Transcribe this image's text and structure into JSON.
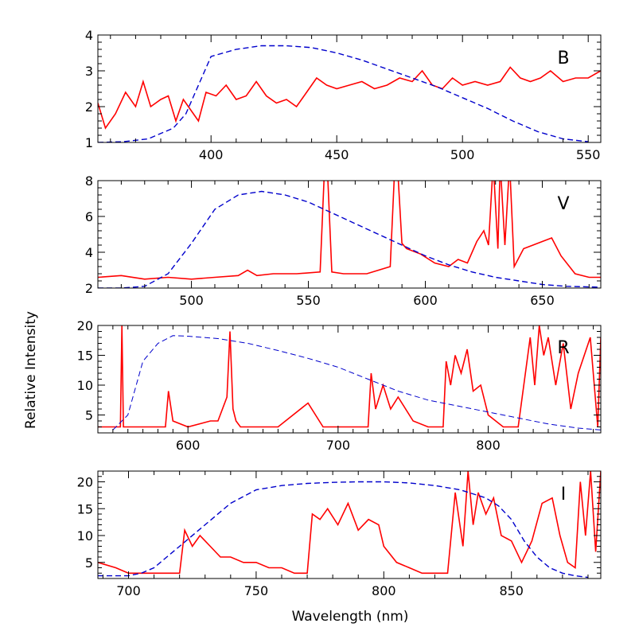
{
  "chart_data": {
    "type": "line",
    "shared_xlabel": "Wavelength (nm)",
    "shared_ylabel": "Relative Intensity",
    "panels": [
      {
        "band_label": "B",
        "xlim": [
          355,
          555
        ],
        "ylim": [
          1,
          4
        ],
        "xticks": [
          400,
          450,
          500,
          550
        ],
        "yticks": [
          1,
          2,
          3,
          4
        ],
        "series": [
          {
            "style": "solid",
            "color": "#ff0000",
            "x": [
              355,
              358,
              362,
              366,
              370,
              373,
              376,
              380,
              383,
              386,
              389,
              392,
              395,
              398,
              402,
              406,
              410,
              414,
              418,
              422,
              426,
              430,
              434,
              438,
              442,
              446,
              450,
              455,
              460,
              465,
              470,
              475,
              480,
              484,
              488,
              492,
              496,
              500,
              505,
              510,
              515,
              519,
              523,
              527,
              531,
              535,
              540,
              545,
              550,
              555
            ],
            "y": [
              2.1,
              1.4,
              1.8,
              2.4,
              2.0,
              2.7,
              2.0,
              2.2,
              2.3,
              1.6,
              2.2,
              1.9,
              1.6,
              2.4,
              2.3,
              2.6,
              2.2,
              2.3,
              2.7,
              2.3,
              2.1,
              2.2,
              2.0,
              2.4,
              2.8,
              2.6,
              2.5,
              2.6,
              2.7,
              2.5,
              2.6,
              2.8,
              2.7,
              3.0,
              2.6,
              2.5,
              2.8,
              2.6,
              2.7,
              2.6,
              2.7,
              3.1,
              2.8,
              2.7,
              2.8,
              3.0,
              2.7,
              2.8,
              2.8,
              3.0
            ]
          },
          {
            "style": "dashed",
            "color": "#0000cc",
            "x": [
              355,
              365,
              375,
              385,
              390,
              395,
              400,
              410,
              420,
              430,
              440,
              450,
              460,
              470,
              480,
              490,
              500,
              510,
              520,
              530,
              540,
              550
            ],
            "y": [
              1.0,
              1.02,
              1.1,
              1.4,
              1.8,
              2.6,
              3.4,
              3.6,
              3.7,
              3.7,
              3.65,
              3.5,
              3.3,
              3.05,
              2.8,
              2.55,
              2.25,
              1.95,
              1.6,
              1.3,
              1.1,
              1.02
            ]
          }
        ]
      },
      {
        "band_label": "V",
        "xlim": [
          460,
          675
        ],
        "ylim": [
          2,
          8
        ],
        "xticks": [
          500,
          550,
          600,
          650
        ],
        "yticks": [
          2,
          4,
          6,
          8
        ],
        "series": [
          {
            "style": "solid",
            "color": "#ff0000",
            "x": [
              460,
              470,
              480,
              490,
              500,
              510,
              520,
              524,
              528,
              535,
              545,
              555,
              557,
              558,
              560,
              565,
              575,
              585,
              587,
              588,
              590,
              592,
              598,
              604,
              610,
              614,
              618,
              622,
              625,
              627,
              629,
              631,
              632,
              634,
              636,
              638,
              642,
              646,
              650,
              654,
              658,
              664,
              670,
              675
            ],
            "y": [
              2.6,
              2.7,
              2.5,
              2.6,
              2.5,
              2.6,
              2.7,
              3.0,
              2.7,
              2.8,
              2.8,
              2.9,
              9.0,
              9.0,
              2.9,
              2.8,
              2.8,
              3.2,
              9.0,
              9.0,
              4.5,
              4.2,
              3.9,
              3.4,
              3.2,
              3.6,
              3.4,
              4.6,
              5.2,
              4.4,
              9.0,
              4.2,
              9.0,
              4.4,
              9.0,
              3.2,
              4.2,
              4.4,
              4.6,
              4.8,
              3.8,
              2.8,
              2.6,
              2.6
            ]
          },
          {
            "style": "dashed",
            "color": "#0000cc",
            "x": [
              460,
              470,
              480,
              490,
              500,
              510,
              520,
              530,
              540,
              550,
              560,
              570,
              580,
              590,
              600,
              610,
              620,
              630,
              640,
              650,
              660,
              675
            ],
            "y": [
              2.0,
              2.0,
              2.1,
              2.8,
              4.5,
              6.4,
              7.2,
              7.4,
              7.2,
              6.8,
              6.2,
              5.6,
              5.0,
              4.4,
              3.8,
              3.3,
              2.9,
              2.6,
              2.4,
              2.2,
              2.1,
              2.05
            ]
          }
        ]
      },
      {
        "band_label": "R",
        "xlim": [
          540,
          875
        ],
        "ylim": [
          2,
          20
        ],
        "xticks": [
          600,
          700,
          800
        ],
        "yticks": [
          5,
          10,
          15,
          20
        ],
        "series": [
          {
            "style": "solid",
            "color": "#ff0000",
            "x": [
              540,
              550,
              555,
              556,
              557,
              560,
              570,
              580,
              585,
              587,
              590,
              600,
              615,
              620,
              626,
              628,
              630,
              632,
              635,
              640,
              660,
              680,
              690,
              700,
              710,
              720,
              722,
              725,
              730,
              735,
              740,
              750,
              760,
              770,
              772,
              775,
              778,
              782,
              786,
              790,
              795,
              800,
              810,
              820,
              828,
              831,
              834,
              837,
              840,
              845,
              850,
              855,
              860,
              868,
              873,
              875
            ],
            "y": [
              3,
              3,
              3,
              20,
              3,
              3,
              3,
              3,
              3,
              9,
              4,
              3,
              4,
              4,
              8,
              19,
              6,
              4,
              3,
              3,
              3,
              7,
              3,
              3,
              3,
              3,
              12,
              6,
              10,
              6,
              8,
              4,
              3,
              3,
              14,
              10,
              15,
              12,
              16,
              9,
              10,
              5,
              3,
              3,
              18,
              10,
              20,
              15,
              18,
              10,
              17,
              6,
              12,
              18,
              3,
              18
            ]
          },
          {
            "style": "dashed",
            "color": "#0000cc",
            "x": [
              550,
              560,
              570,
              580,
              590,
              600,
              620,
              640,
              660,
              680,
              700,
              720,
              740,
              760,
              780,
              800,
              820,
              840,
              860,
              875
            ],
            "y": [
              2.5,
              5,
              14,
              17,
              18.3,
              18.2,
              17.8,
              17,
              15.8,
              14.5,
              13,
              11,
              9,
              7.5,
              6.5,
              5.5,
              4.5,
              3.5,
              2.8,
              2.5
            ]
          }
        ]
      },
      {
        "band_label": "I",
        "xlim": [
          688,
          885
        ],
        "ylim": [
          2,
          22
        ],
        "xticks": [
          700,
          750,
          800,
          850
        ],
        "yticks": [
          5,
          10,
          15,
          20
        ],
        "series": [
          {
            "style": "solid",
            "color": "#ff0000",
            "x": [
              688,
              695,
              700,
              705,
              710,
              715,
              720,
              722,
              725,
              728,
              732,
              736,
              740,
              745,
              750,
              755,
              760,
              765,
              770,
              772,
              775,
              778,
              782,
              786,
              790,
              794,
              798,
              800,
              805,
              810,
              815,
              820,
              825,
              828,
              831,
              833,
              835,
              837,
              840,
              843,
              846,
              850,
              854,
              858,
              862,
              866,
              869,
              872,
              875,
              877,
              879,
              881,
              883,
              885
            ],
            "y": [
              5,
              4,
              3,
              3,
              3,
              3,
              3,
              11,
              8,
              10,
              8,
              6,
              6,
              5,
              5,
              4,
              4,
              3,
              3,
              14,
              13,
              15,
              12,
              16,
              11,
              13,
              12,
              8,
              5,
              4,
              3,
              3,
              3,
              18,
              8,
              22,
              12,
              18,
              14,
              17,
              10,
              9,
              5,
              9,
              16,
              17,
              10,
              5,
              4,
              20,
              10,
              22,
              7,
              22
            ]
          },
          {
            "style": "dashed",
            "color": "#0000cc",
            "x": [
              688,
              700,
              705,
              710,
              715,
              720,
              730,
              740,
              750,
              760,
              770,
              780,
              790,
              800,
              810,
              820,
              830,
              840,
              845,
              850,
              855,
              860,
              865,
              870,
              875,
              880
            ],
            "y": [
              2.5,
              2.5,
              3,
              4,
              6,
              8,
              12,
              16,
              18.5,
              19.3,
              19.7,
              19.9,
              20,
              20,
              19.8,
              19.3,
              18.5,
              17,
              15.5,
              13,
              9,
              6,
              4,
              3,
              2.5,
              2.2
            ]
          }
        ]
      }
    ]
  }
}
